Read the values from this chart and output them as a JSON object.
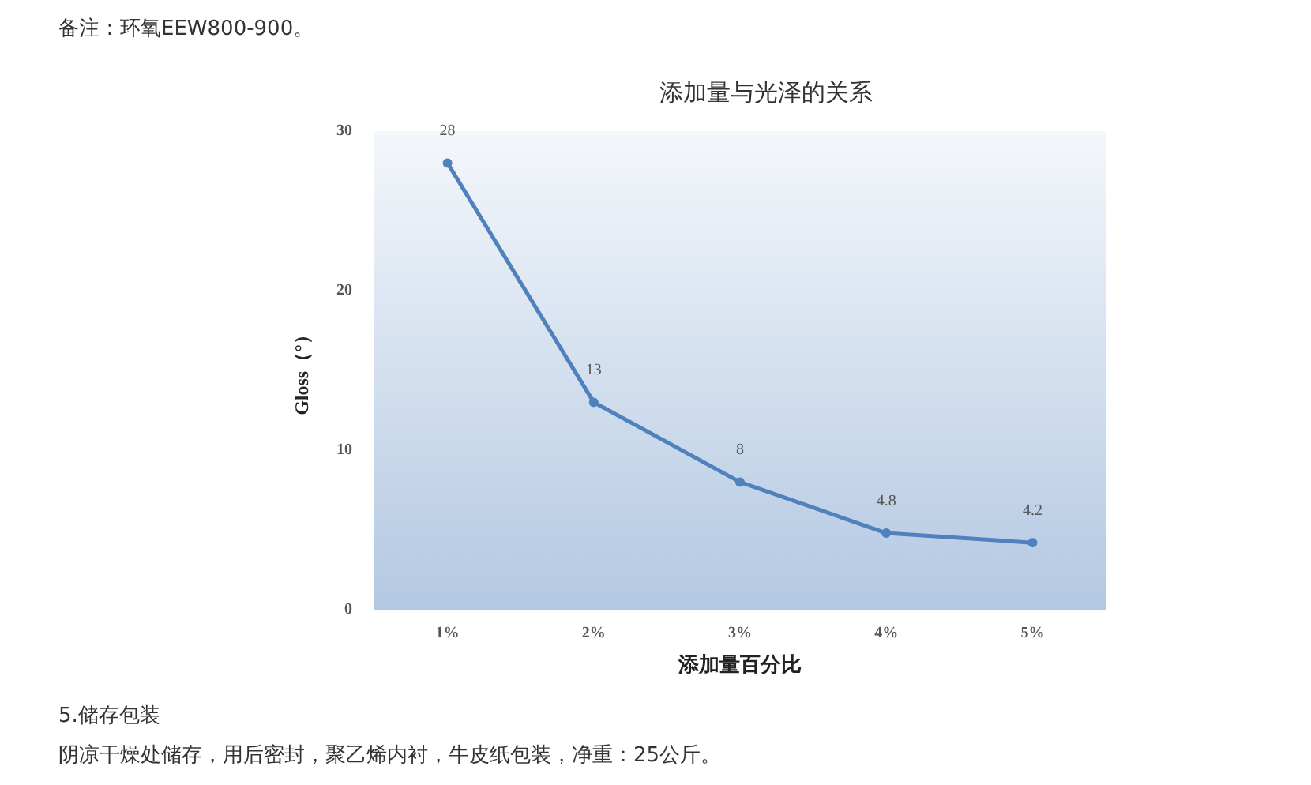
{
  "chart_data": {
    "type": "line",
    "title": "添加量与光泽的关系",
    "xlabel": "添加量百分比",
    "ylabel": "Gloss（°）",
    "categories": [
      "1%",
      "2%",
      "3%",
      "4%",
      "5%"
    ],
    "series": [
      {
        "color": "#4f81bd",
        "values": [
          28,
          13,
          8,
          4.8,
          4.2
        ]
      }
    ],
    "ylim": [
      0,
      30
    ],
    "yticks": [
      0,
      10,
      20,
      30
    ],
    "grid": false,
    "marker": "circle",
    "line_style": "solid",
    "data_labels": true,
    "annotations": [
      "备注：环氧EEW800-900。",
      "5.储存包装",
      "阴凉干燥处储存，用后密封，聚乙烯内衬，牛皮纸包装，净重：25公斤。"
    ]
  }
}
